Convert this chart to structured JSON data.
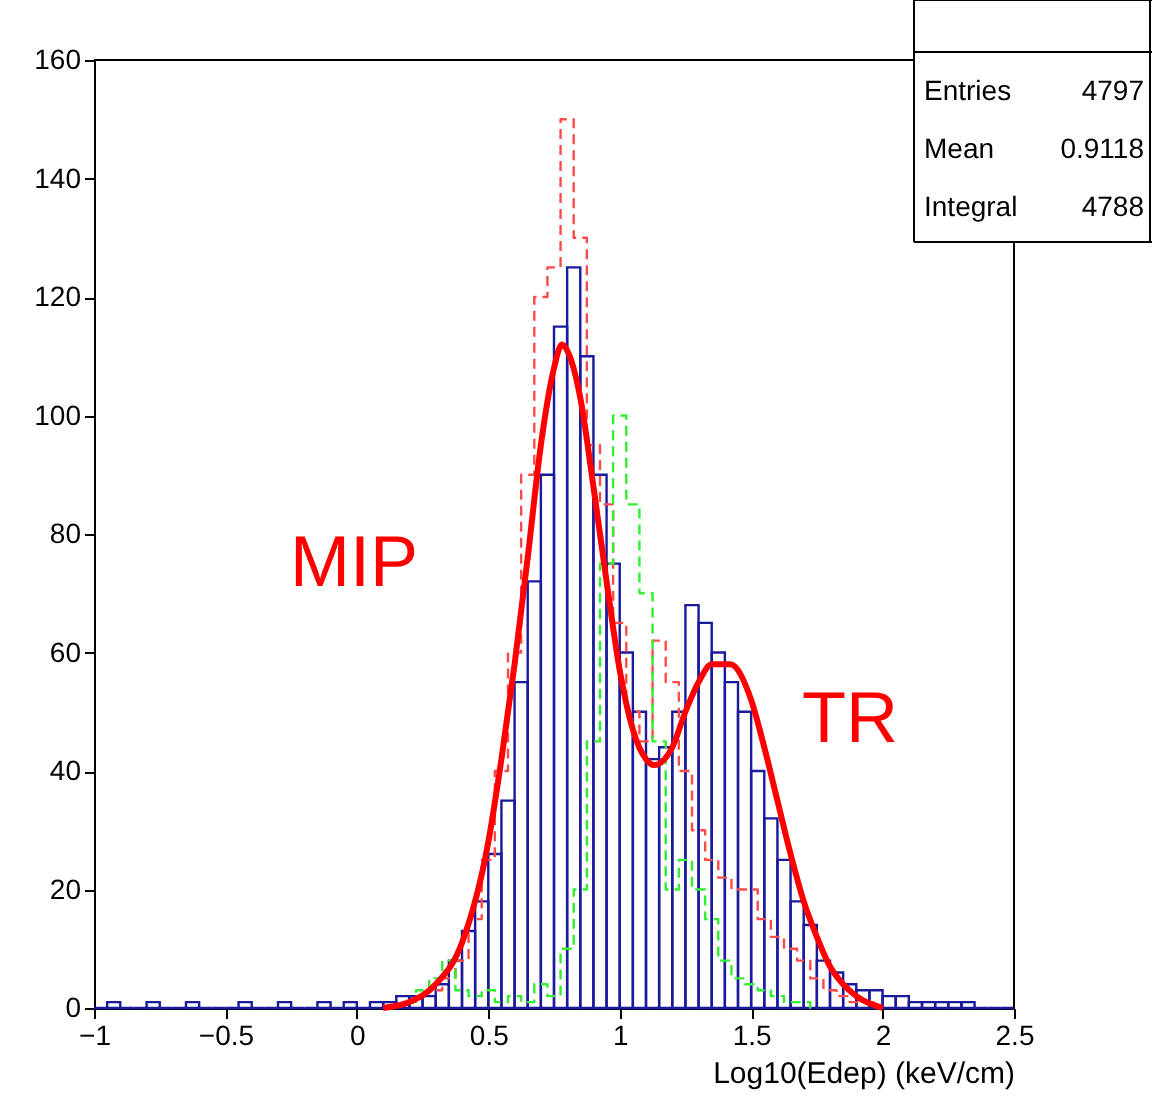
{
  "chart_data": {
    "type": "histogram",
    "xlabel": "Log10(Edep) (keV/cm)",
    "color": "#1a1a9c",
    "bins": [
      -1.0,
      -0.95,
      -0.9,
      -0.85,
      -0.8,
      -0.75,
      -0.7,
      -0.65,
      -0.6,
      -0.55,
      -0.5,
      -0.45,
      -0.4,
      -0.35,
      -0.3,
      -0.25,
      -0.2,
      -0.15,
      -0.1,
      -0.05,
      0.0,
      0.05,
      0.1,
      0.15,
      0.2,
      0.25,
      0.3,
      0.35,
      0.4,
      0.45,
      0.5,
      0.55,
      0.6,
      0.65,
      0.7,
      0.75,
      0.8,
      0.85,
      0.9,
      0.95,
      1.0,
      1.05,
      1.1,
      1.15,
      1.2,
      1.25,
      1.3,
      1.35,
      1.4,
      1.45,
      1.5,
      1.55,
      1.6,
      1.65,
      1.7,
      1.75,
      1.8,
      1.85,
      1.9,
      1.95,
      2.0,
      2.05,
      2.1,
      2.15,
      2.2,
      2.25,
      2.3,
      2.35,
      2.4,
      2.45,
      2.5
    ],
    "values": [
      0,
      1,
      0,
      0,
      1,
      0,
      0,
      1,
      0,
      0,
      0,
      1,
      0,
      0,
      1,
      0,
      0,
      1,
      0,
      1,
      0,
      1,
      1,
      2,
      2,
      2,
      4,
      8,
      13,
      18,
      26,
      35,
      55,
      72,
      90,
      115,
      125,
      110,
      90,
      75,
      60,
      50,
      42,
      44,
      50,
      68,
      65,
      60,
      55,
      50,
      40,
      32,
      25,
      18,
      14,
      8,
      6,
      4,
      3,
      3,
      2,
      2,
      1,
      1,
      1,
      1,
      1,
      0,
      0,
      0
    ],
    "series": [
      {
        "type": "step",
        "line_style": "dashed",
        "color": "#ff4a4a",
        "x": [
          0.3,
          0.35,
          0.4,
          0.45,
          0.5,
          0.55,
          0.6,
          0.65,
          0.7,
          0.75,
          0.8,
          0.85,
          0.9,
          0.95,
          1.0,
          1.05,
          1.1,
          1.15,
          1.2,
          1.25,
          1.3,
          1.35,
          1.4,
          1.45,
          1.5,
          1.55,
          1.6,
          1.65,
          1.7,
          1.75,
          1.8,
          1.85,
          1.9,
          1.95,
          2.0
        ],
        "values": [
          3,
          5,
          8,
          15,
          25,
          40,
          60,
          90,
          120,
          125,
          150,
          130,
          95,
          85,
          65,
          50,
          45,
          62,
          55,
          40,
          30,
          25,
          22,
          20,
          20,
          15,
          12,
          10,
          8,
          5,
          3,
          2,
          1,
          1,
          0
        ]
      },
      {
        "type": "step",
        "line_style": "dashed",
        "color": "#33ee33",
        "x": [
          0.2,
          0.25,
          0.3,
          0.35,
          0.4,
          0.45,
          0.5,
          0.55,
          0.6,
          0.65,
          0.7,
          0.75,
          0.8,
          0.85,
          0.9,
          0.95,
          1.0,
          1.05,
          1.1,
          1.15,
          1.2,
          1.25,
          1.3,
          1.35,
          1.4,
          1.45,
          1.5,
          1.55,
          1.6,
          1.65,
          1.7,
          1.75
        ],
        "values": [
          1,
          3,
          5,
          8,
          3,
          2,
          3,
          1,
          2,
          1,
          4,
          2,
          10,
          20,
          45,
          75,
          100,
          85,
          70,
          45,
          20,
          25,
          20,
          15,
          8,
          5,
          4,
          3,
          2,
          1,
          1,
          0
        ]
      },
      {
        "type": "line",
        "color": "#ff0000",
        "x": [
          0.1,
          0.2,
          0.3,
          0.4,
          0.5,
          0.55,
          0.6,
          0.65,
          0.7,
          0.75,
          0.78,
          0.8,
          0.85,
          0.9,
          0.95,
          1.0,
          1.05,
          1.1,
          1.13,
          1.2,
          1.25,
          1.3,
          1.35,
          1.42,
          1.5,
          1.55,
          1.6,
          1.65,
          1.7,
          1.75,
          1.8,
          1.85,
          1.9,
          2.0
        ],
        "values": [
          0,
          1,
          4,
          11,
          28,
          42,
          58,
          76,
          95,
          108,
          112,
          111,
          103,
          88,
          72,
          57,
          47,
          42,
          41,
          44,
          50,
          55,
          58,
          58,
          52,
          44,
          35,
          26,
          18,
          12,
          7,
          4,
          2,
          0
        ]
      }
    ],
    "annotations": [
      "MIP",
      "TR",
      "Entries 4797",
      "Mean 0.9118",
      "Integral 4788"
    ],
    "xlim": [
      -1,
      2.5
    ],
    "xticks": [
      -1,
      -0.5,
      0,
      0.5,
      1,
      1.5,
      2,
      2.5
    ],
    "ylim": [
      0,
      160
    ],
    "yticks": [
      0,
      20,
      40,
      60,
      80,
      100,
      120,
      140,
      160
    ],
    "grid": false
  }
}
